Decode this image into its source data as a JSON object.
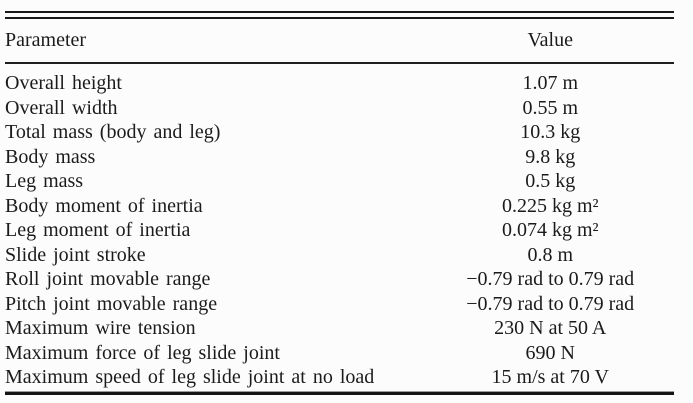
{
  "table": {
    "columns": {
      "parameter": "Parameter",
      "value": "Value"
    },
    "rows": [
      {
        "param": "Overall height",
        "value": "1.07 m"
      },
      {
        "param": "Overall width",
        "value": "0.55 m"
      },
      {
        "param": "Total mass (body and leg)",
        "value": "10.3 kg"
      },
      {
        "param": "Body mass",
        "value": "9.8 kg"
      },
      {
        "param": "Leg mass",
        "value": "0.5 kg"
      },
      {
        "param": "Body moment of inertia",
        "value": "0.225 kg m²"
      },
      {
        "param": "Leg moment of inertia",
        "value": "0.074 kg m²"
      },
      {
        "param": "Slide joint stroke",
        "value": "0.8 m"
      },
      {
        "param": "Roll joint movable range",
        "value": "−0.79 rad to 0.79 rad"
      },
      {
        "param": "Pitch joint movable range",
        "value": "−0.79 rad to 0.79 rad"
      },
      {
        "param": "Maximum wire tension",
        "value": "230 N at 50 A"
      },
      {
        "param": "Maximum force of leg slide joint",
        "value": "690 N"
      },
      {
        "param": "Maximum speed of leg slide joint at no load",
        "value": "15 m/s at 70 V"
      }
    ]
  },
  "colors": {
    "background": "#fcfcfc",
    "text": "#1b1b1b",
    "rule": "#1a1a1a"
  }
}
